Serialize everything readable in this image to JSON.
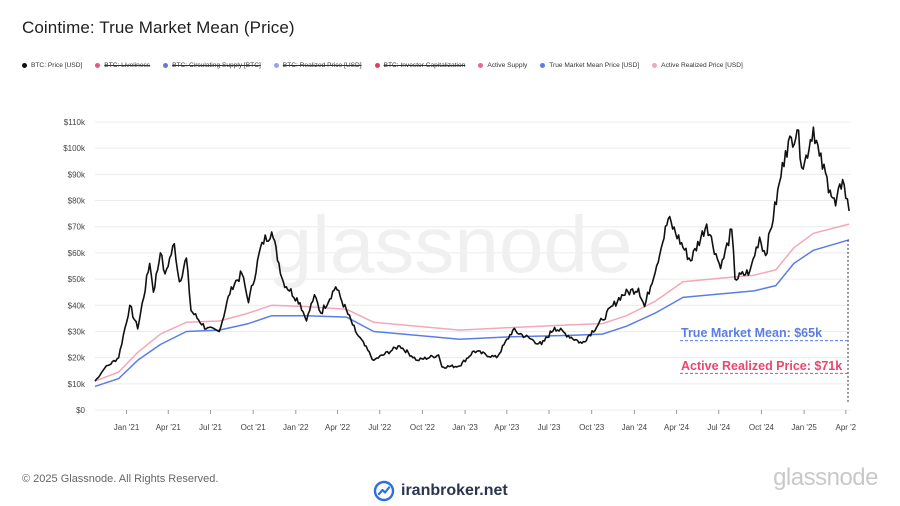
{
  "title": "Cointime: True Market Mean (Price)",
  "legend": [
    {
      "label": "BTC: Price [USD]",
      "color": "#111111",
      "hidden": false
    },
    {
      "label": "BTC: Liveliness",
      "color": "#e8587a",
      "hidden": true
    },
    {
      "label": "BTC: Circulating Supply [BTC]",
      "color": "#6b77d8",
      "hidden": true
    },
    {
      "label": "BTC: Realized Price [USD]",
      "color": "#9aa3e6",
      "hidden": true
    },
    {
      "label": "BTC: Investor Capitalization",
      "color": "#e0405e",
      "hidden": true
    },
    {
      "label": "Active Supply",
      "color": "#e86a8a",
      "hidden": false
    },
    {
      "label": "True Market Mean Price [USD]",
      "color": "#5b7ee5",
      "hidden": false
    },
    {
      "label": "Active Realized Price [USD]",
      "color": "#f2a8b8",
      "hidden": false
    }
  ],
  "watermark": "glassnode",
  "annotations": {
    "true_market_mean": {
      "text": "True Market Mean: $65k",
      "color": "#5b7ee5",
      "value": 65000
    },
    "active_realized": {
      "text": "Active Realized Price: $71k",
      "color": "#e8476e",
      "value": 71000
    }
  },
  "footer": {
    "copyright": "© 2025 Glassnode. All Rights Reserved.",
    "brand": "glassnode",
    "site": "iranbroker.net"
  },
  "chart_data": {
    "type": "line",
    "x_ticks": [
      "Jan '21",
      "Apr '21",
      "Jul '21",
      "Oct '21",
      "Jan '22",
      "Apr '22",
      "Jul '22",
      "Oct '22",
      "Jan '23",
      "Apr '23",
      "Jul '23",
      "Oct '23",
      "Jan '24",
      "Apr '24",
      "Jul '24",
      "Oct '24",
      "Jan '25",
      "Apr '2"
    ],
    "y_ticks": [
      "$0",
      "$10k",
      "$20k",
      "$30k",
      "$40k",
      "$50k",
      "$60k",
      "$70k",
      "$80k",
      "$90k",
      "$100k",
      "$110k"
    ],
    "ylim": [
      0,
      110000
    ],
    "xlim": [
      "2020-10-25",
      "2025-04-10"
    ],
    "grid": "horizontal",
    "series": [
      {
        "name": "BTC: Price [USD]",
        "color": "#111111",
        "points": [
          [
            "2020-10-25",
            11000
          ],
          [
            "2020-11-15",
            16000
          ],
          [
            "2020-12-15",
            20000
          ],
          [
            "2021-01-08",
            40000
          ],
          [
            "2021-01-25",
            31000
          ],
          [
            "2021-02-20",
            56000
          ],
          [
            "2021-02-28",
            45000
          ],
          [
            "2021-03-15",
            60000
          ],
          [
            "2021-03-25",
            52000
          ],
          [
            "2021-04-14",
            63500
          ],
          [
            "2021-04-25",
            49000
          ],
          [
            "2021-05-10",
            58000
          ],
          [
            "2021-05-20",
            38000
          ],
          [
            "2021-06-22",
            31000
          ],
          [
            "2021-07-20",
            30000
          ],
          [
            "2021-08-15",
            47000
          ],
          [
            "2021-09-07",
            52000
          ],
          [
            "2021-09-21",
            41000
          ],
          [
            "2021-10-20",
            64000
          ],
          [
            "2021-11-10",
            68000
          ],
          [
            "2021-12-05",
            49000
          ],
          [
            "2022-01-10",
            41000
          ],
          [
            "2022-01-24",
            34000
          ],
          [
            "2022-02-10",
            44000
          ],
          [
            "2022-02-24",
            37000
          ],
          [
            "2022-03-28",
            47000
          ],
          [
            "2022-05-10",
            30000
          ],
          [
            "2022-06-18",
            19000
          ],
          [
            "2022-08-13",
            24500
          ],
          [
            "2022-09-20",
            19000
          ],
          [
            "2022-11-05",
            21000
          ],
          [
            "2022-11-12",
            16500
          ],
          [
            "2022-12-20",
            16800
          ],
          [
            "2023-01-20",
            22500
          ],
          [
            "2023-03-10",
            20000
          ],
          [
            "2023-04-14",
            30500
          ],
          [
            "2023-06-15",
            25000
          ],
          [
            "2023-07-13",
            31500
          ],
          [
            "2023-09-10",
            25500
          ],
          [
            "2023-10-24",
            34500
          ],
          [
            "2023-12-05",
            44000
          ],
          [
            "2024-01-10",
            46500
          ],
          [
            "2024-01-23",
            39500
          ],
          [
            "2024-02-28",
            62000
          ],
          [
            "2024-03-14",
            73000
          ],
          [
            "2024-05-01",
            57000
          ],
          [
            "2024-06-05",
            71000
          ],
          [
            "2024-07-05",
            54000
          ],
          [
            "2024-07-29",
            69000
          ],
          [
            "2024-08-05",
            50000
          ],
          [
            "2024-09-06",
            53000
          ],
          [
            "2024-09-27",
            66000
          ],
          [
            "2024-10-10",
            59000
          ],
          [
            "2024-11-12",
            89000
          ],
          [
            "2024-11-22",
            99000
          ],
          [
            "2024-12-17",
            107000
          ],
          [
            "2024-12-30",
            92000
          ],
          [
            "2025-01-21",
            108000
          ],
          [
            "2025-02-03",
            97000
          ],
          [
            "2025-02-26",
            84000
          ],
          [
            "2025-03-10",
            78000
          ],
          [
            "2025-03-25",
            88000
          ],
          [
            "2025-04-08",
            76000
          ]
        ]
      },
      {
        "name": "True Market Mean Price [USD]",
        "color": "#5b7ee5",
        "points": [
          [
            "2020-10-25",
            9000
          ],
          [
            "2020-12-15",
            12000
          ],
          [
            "2021-01-25",
            19000
          ],
          [
            "2021-03-15",
            25000
          ],
          [
            "2021-05-10",
            30000
          ],
          [
            "2021-07-20",
            30500
          ],
          [
            "2021-09-21",
            33000
          ],
          [
            "2021-11-10",
            36000
          ],
          [
            "2022-01-24",
            36000
          ],
          [
            "2022-04-20",
            35500
          ],
          [
            "2022-06-18",
            30000
          ],
          [
            "2022-09-20",
            28500
          ],
          [
            "2022-12-20",
            27000
          ],
          [
            "2023-04-14",
            28000
          ],
          [
            "2023-08-15",
            28500
          ],
          [
            "2023-10-24",
            29000
          ],
          [
            "2023-12-15",
            32000
          ],
          [
            "2024-02-15",
            37000
          ],
          [
            "2024-04-15",
            43000
          ],
          [
            "2024-07-15",
            44500
          ],
          [
            "2024-09-15",
            45500
          ],
          [
            "2024-11-01",
            47500
          ],
          [
            "2024-12-10",
            56000
          ],
          [
            "2025-01-21",
            61000
          ],
          [
            "2025-04-08",
            65000
          ]
        ]
      },
      {
        "name": "Active Realized Price [USD]",
        "color": "#f2a8b8",
        "points": [
          [
            "2020-10-25",
            11000
          ],
          [
            "2020-12-15",
            14500
          ],
          [
            "2021-01-25",
            22000
          ],
          [
            "2021-03-15",
            29000
          ],
          [
            "2021-05-10",
            33500
          ],
          [
            "2021-07-20",
            34000
          ],
          [
            "2021-09-21",
            37000
          ],
          [
            "2021-11-10",
            40000
          ],
          [
            "2022-01-24",
            39500
          ],
          [
            "2022-04-20",
            38500
          ],
          [
            "2022-06-18",
            33500
          ],
          [
            "2022-09-20",
            32000
          ],
          [
            "2022-12-20",
            30500
          ],
          [
            "2023-04-14",
            31500
          ],
          [
            "2023-08-15",
            32500
          ],
          [
            "2023-10-24",
            33000
          ],
          [
            "2023-12-15",
            36000
          ],
          [
            "2024-02-15",
            41500
          ],
          [
            "2024-04-15",
            49000
          ],
          [
            "2024-07-15",
            50500
          ],
          [
            "2024-09-15",
            51500
          ],
          [
            "2024-11-01",
            53500
          ],
          [
            "2024-12-10",
            62000
          ],
          [
            "2025-01-21",
            67500
          ],
          [
            "2025-04-08",
            71000
          ]
        ]
      }
    ]
  }
}
